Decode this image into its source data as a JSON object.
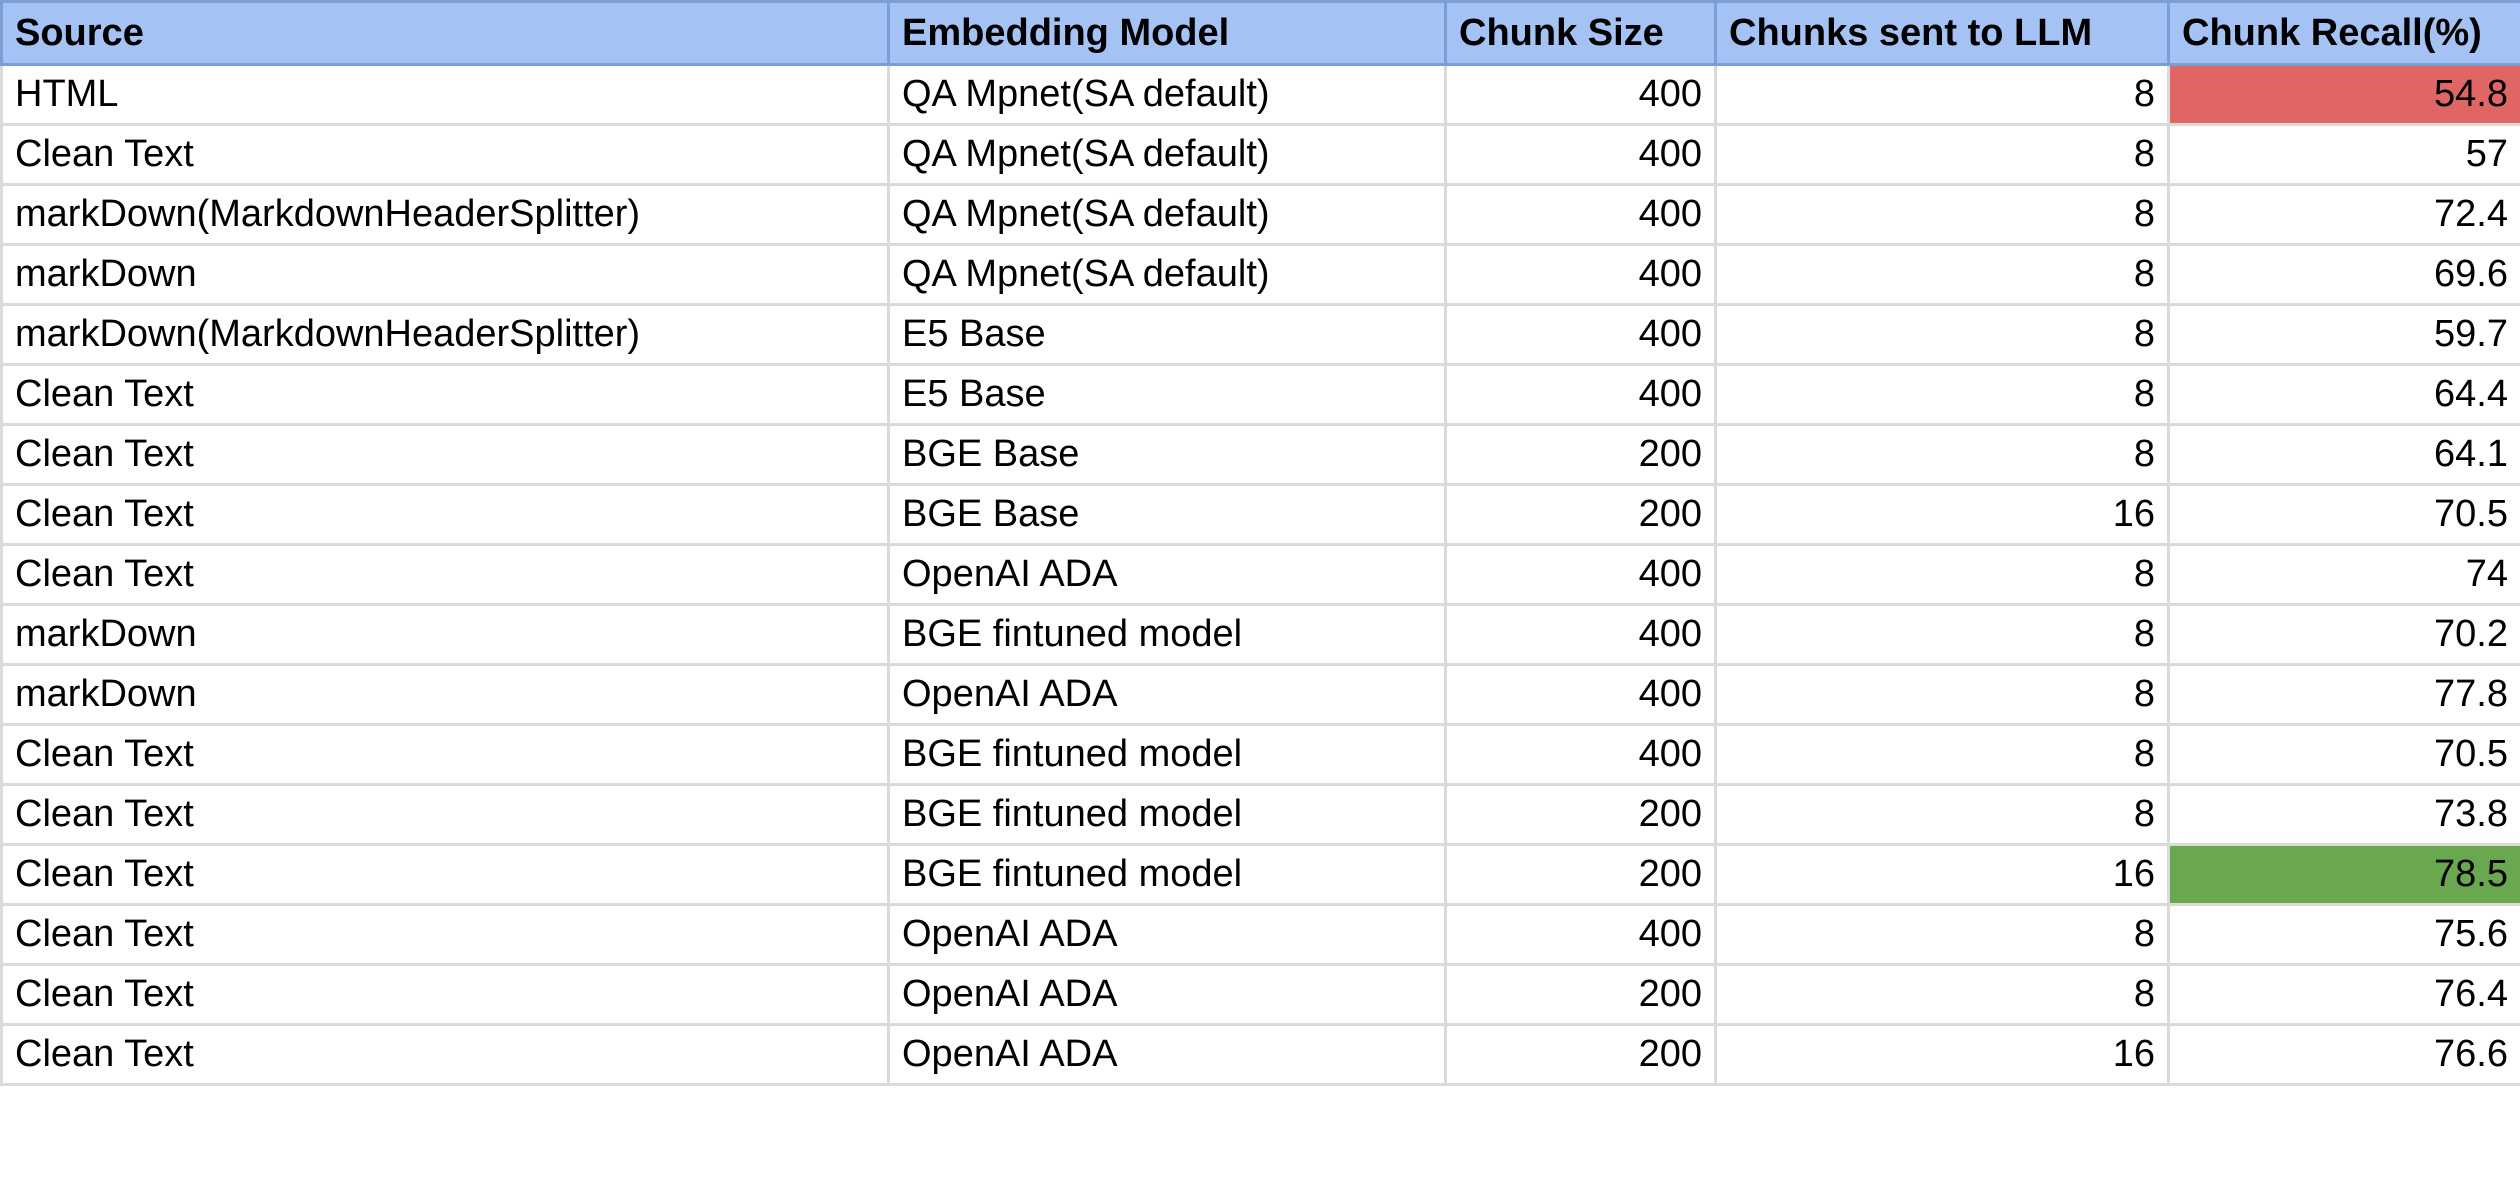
{
  "chart_data": {
    "type": "table",
    "columns": [
      "Source",
      "Embedding Model",
      "Chunk Size",
      "Chunks sent to LLM",
      "Chunk Recall(%)"
    ],
    "rows": [
      [
        "HTML",
        "QA Mpnet(SA default)",
        "400",
        "8",
        "54.8"
      ],
      [
        "Clean Text",
        "QA Mpnet(SA default)",
        "400",
        "8",
        "57"
      ],
      [
        "markDown(MarkdownHeaderSplitter)",
        "QA Mpnet(SA default)",
        "400",
        "8",
        "72.4"
      ],
      [
        "markDown",
        "QA Mpnet(SA default)",
        "400",
        "8",
        "69.6"
      ],
      [
        "markDown(MarkdownHeaderSplitter)",
        "E5 Base",
        "400",
        "8",
        "59.7"
      ],
      [
        "Clean Text",
        "E5 Base",
        "400",
        "8",
        "64.4"
      ],
      [
        "Clean Text",
        "BGE Base",
        "200",
        "8",
        "64.1"
      ],
      [
        "Clean Text",
        "BGE Base",
        "200",
        "16",
        "70.5"
      ],
      [
        "Clean Text",
        "OpenAI ADA",
        "400",
        "8",
        "74"
      ],
      [
        "markDown",
        "BGE fintuned model",
        "400",
        "8",
        "70.2"
      ],
      [
        "markDown",
        "OpenAI ADA",
        "400",
        "8",
        "77.8"
      ],
      [
        "Clean Text",
        "BGE fintuned model",
        "400",
        "8",
        "70.5"
      ],
      [
        "Clean Text",
        "BGE fintuned model",
        "200",
        "8",
        "73.8"
      ],
      [
        "Clean Text",
        "BGE fintuned model",
        "200",
        "16",
        "78.5"
      ],
      [
        "Clean Text",
        "OpenAI ADA",
        "400",
        "8",
        "75.6"
      ],
      [
        "Clean Text",
        "OpenAI ADA",
        "200",
        "8",
        "76.4"
      ],
      [
        "Clean Text",
        "OpenAI ADA",
        "200",
        "16",
        "76.6"
      ]
    ],
    "numeric_columns": [
      2,
      3,
      4
    ],
    "highlights": [
      {
        "row": 0,
        "col": 4,
        "color": "#e06666"
      },
      {
        "row": 13,
        "col": 4,
        "color": "#6aa84f"
      }
    ]
  },
  "colors": {
    "header_bg": "#a4c2f4",
    "low_highlight": "#e06666",
    "high_highlight": "#6aa84f",
    "gridline": "#dadada"
  }
}
